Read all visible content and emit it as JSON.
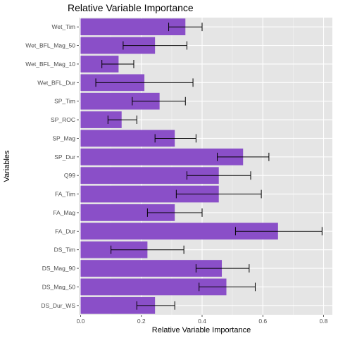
{
  "chart_data": {
    "type": "bar",
    "orientation": "horizontal",
    "title": "Relative Variable Importance",
    "xlabel": "Relative Variable Importance",
    "ylabel": "Variables",
    "xlim": [
      0,
      0.8
    ],
    "x_ticks": [
      "0.0",
      "0.2",
      "0.4",
      "0.6",
      "0.8"
    ],
    "categories": [
      "Wet_Tim",
      "Wet_BFL_Mag_50",
      "Wet_BFL_Mag_10",
      "Wet_BFL_Dur",
      "SP_Tim",
      "SP_ROC",
      "SP_Mag",
      "SP_Dur",
      "Q99",
      "FA_Tim",
      "FA_Mag",
      "FA_Dur",
      "DS_Tim",
      "DS_Mag_90",
      "DS_Mag_50",
      "DS_Dur_WS"
    ],
    "values": [
      0.345,
      0.245,
      0.125,
      0.21,
      0.26,
      0.135,
      0.31,
      0.535,
      0.455,
      0.455,
      0.31,
      0.65,
      0.22,
      0.465,
      0.48,
      0.245
    ],
    "error_low": [
      0.29,
      0.14,
      0.07,
      0.05,
      0.17,
      0.09,
      0.245,
      0.45,
      0.35,
      0.315,
      0.22,
      0.51,
      0.1,
      0.38,
      0.39,
      0.185
    ],
    "error_high": [
      0.4,
      0.35,
      0.175,
      0.37,
      0.345,
      0.185,
      0.38,
      0.62,
      0.56,
      0.595,
      0.4,
      0.795,
      0.34,
      0.555,
      0.575,
      0.31
    ],
    "bar_color": "#8A4FC8",
    "panel_color": "#E5E5E5",
    "grid": true,
    "legend": "none"
  }
}
